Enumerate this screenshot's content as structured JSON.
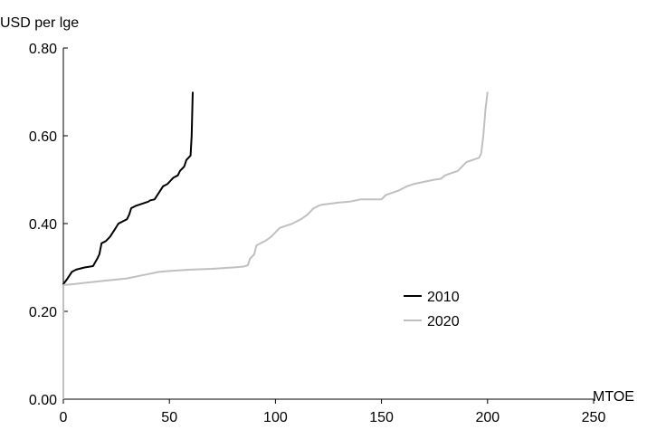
{
  "chart_data": {
    "type": "line",
    "ylabel": "USD per lge",
    "xlabel": "MTOE",
    "xlim": [
      0,
      250
    ],
    "ylim": [
      0,
      0.8
    ],
    "xticks": [
      0,
      50,
      100,
      150,
      200,
      250
    ],
    "yticks": [
      0.0,
      0.2,
      0.4,
      0.6,
      0.8
    ],
    "xtick_labels": [
      "0",
      "50",
      "100",
      "150",
      "200",
      "250"
    ],
    "ytick_labels": [
      "0.00",
      "0.20",
      "0.40",
      "0.60",
      "0.80"
    ],
    "grid": false,
    "legend_position": "center-right",
    "series": [
      {
        "name": "2010",
        "color": "#000000",
        "x": [
          0,
          0,
          2,
          4,
          6,
          10,
          14,
          16,
          17,
          18,
          20,
          22,
          24,
          26,
          28,
          30,
          31,
          32,
          34,
          37,
          40,
          41,
          43,
          45,
          47,
          49,
          51,
          52,
          54,
          55,
          57,
          58,
          59,
          60,
          60.5,
          61
        ],
        "y": [
          0,
          0.262,
          0.275,
          0.29,
          0.295,
          0.3,
          0.303,
          0.32,
          0.33,
          0.355,
          0.36,
          0.37,
          0.385,
          0.4,
          0.405,
          0.41,
          0.42,
          0.435,
          0.44,
          0.445,
          0.45,
          0.453,
          0.455,
          0.47,
          0.485,
          0.49,
          0.5,
          0.505,
          0.51,
          0.52,
          0.53,
          0.545,
          0.55,
          0.555,
          0.6,
          0.7
        ]
      },
      {
        "name": "2020",
        "color": "#c0c0c0",
        "x": [
          0,
          0,
          5,
          10,
          20,
          30,
          35,
          40,
          45,
          50,
          60,
          70,
          80,
          85,
          87,
          88,
          90,
          91,
          93,
          95,
          98,
          100,
          102,
          105,
          108,
          110,
          112,
          115,
          117,
          118,
          119,
          120,
          122,
          125,
          130,
          135,
          140,
          145,
          150,
          152,
          155,
          158,
          162,
          165,
          170,
          175,
          178,
          180,
          183,
          186,
          188,
          190,
          193,
          196,
          197,
          198,
          199,
          200
        ],
        "y": [
          0,
          0.26,
          0.262,
          0.265,
          0.27,
          0.275,
          0.28,
          0.285,
          0.29,
          0.292,
          0.295,
          0.297,
          0.3,
          0.302,
          0.305,
          0.32,
          0.33,
          0.35,
          0.355,
          0.36,
          0.37,
          0.38,
          0.39,
          0.395,
          0.4,
          0.405,
          0.41,
          0.42,
          0.43,
          0.435,
          0.437,
          0.44,
          0.443,
          0.445,
          0.448,
          0.45,
          0.455,
          0.455,
          0.455,
          0.465,
          0.47,
          0.475,
          0.485,
          0.49,
          0.495,
          0.5,
          0.502,
          0.51,
          0.515,
          0.52,
          0.53,
          0.54,
          0.545,
          0.55,
          0.56,
          0.6,
          0.66,
          0.7
        ]
      }
    ]
  }
}
